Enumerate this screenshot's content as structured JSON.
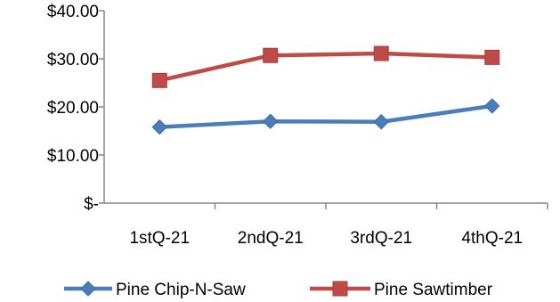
{
  "chart_data": {
    "type": "line",
    "categories": [
      "1stQ-21",
      "2ndQ-21",
      "3rdQ-21",
      "4thQ-21"
    ],
    "series": [
      {
        "name": "Pine Chip-N-Saw",
        "values": [
          15.8,
          17.0,
          16.9,
          20.2
        ],
        "color": "#4a7ebb",
        "marker": "diamond"
      },
      {
        "name": "Pine Sawtimber",
        "values": [
          25.5,
          30.7,
          31.1,
          30.3
        ],
        "color": "#be4b48",
        "marker": "square"
      }
    ],
    "ylim": [
      0,
      40
    ],
    "yticks": [
      0,
      10,
      20,
      30,
      40
    ],
    "ytick_labels": [
      "$-",
      "$10.00",
      "$20.00",
      "$30.00",
      "$40.00"
    ],
    "legend_position": "bottom",
    "grid": false
  }
}
